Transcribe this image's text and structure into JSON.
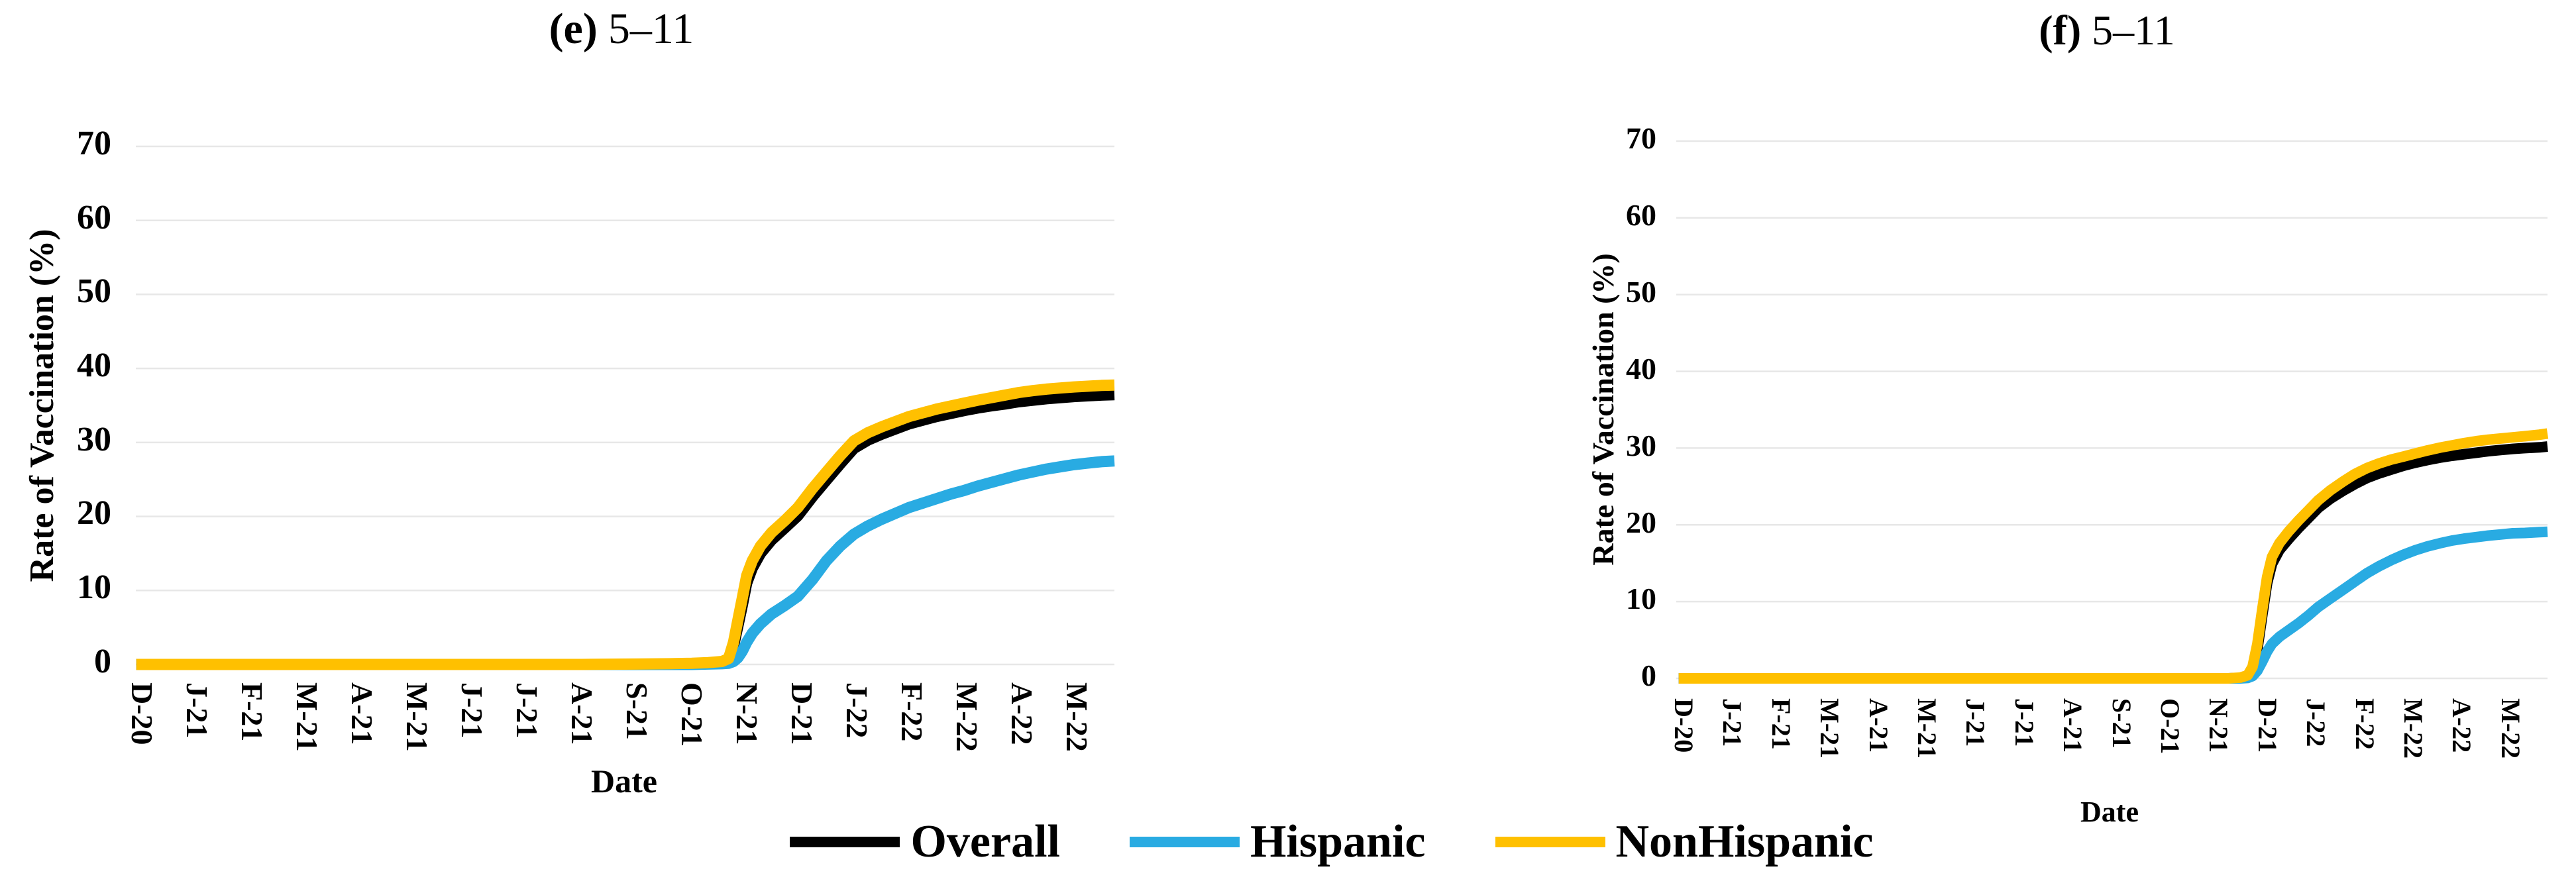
{
  "figure": {
    "background": "#FFFFFF",
    "grid_color": "#E7E7E7",
    "text_color": "#000000"
  },
  "legend": {
    "items": [
      {
        "label": "Overall",
        "color": "#000000"
      },
      {
        "label": "Hispanic",
        "color": "#29ABE2"
      },
      {
        "label": "NonHispanic",
        "color": "#FFC000"
      }
    ]
  },
  "chart_data": [
    {
      "id": "e",
      "type": "line",
      "title_prefix": "(e)",
      "title": "5–11",
      "xlabel": "Date",
      "ylabel": "Rate of Vaccination (%)",
      "ylim": [
        0,
        70
      ],
      "y_ticks": [
        70,
        60,
        50,
        40,
        30,
        20,
        10,
        0
      ],
      "grid": "horizontal",
      "legend_position": "bottom",
      "categories": [
        "D-20",
        "J-21",
        "F-21",
        "M-21",
        "A-21",
        "M-21",
        "J-21",
        "J-21",
        "A-21",
        "S-21",
        "O-21",
        "N-21",
        "D-21",
        "J-22",
        "F-22",
        "M-22",
        "A-22",
        "M-22"
      ],
      "series": [
        {
          "name": "Overall",
          "color": "#000000",
          "values": [
            0,
            0,
            0,
            0,
            0,
            0,
            0,
            0,
            0,
            0,
            0.1,
            11,
            20.1,
            29.2,
            32.5,
            34.3,
            35.5,
            36.2
          ],
          "detail": {
            "x": [
              -0.1,
              2,
              4,
              6,
              8,
              9,
              9.6,
              10,
              10.3,
              10.55,
              10.67,
              10.76,
              10.84,
              10.92,
              11.0,
              11.1,
              11.25,
              11.45,
              11.7,
              11.93,
              12.2,
              12.45,
              12.7,
              12.95,
              13.2,
              13.45,
              13.7,
              13.95,
              14.2,
              14.45,
              14.7,
              14.95,
              15.2,
              15.45,
              15.7,
              15.95,
              16.2,
              16.45,
              16.7,
              16.95,
              17.2,
              17.45,
              17.7
            ],
            "y": [
              0,
              0,
              0,
              0,
              0,
              0,
              0.05,
              0.1,
              0.15,
              0.3,
              0.6,
              2.5,
              5.2,
              8,
              11,
              13,
              15,
              16.8,
              18.5,
              20.1,
              22.7,
              24.9,
              27.1,
              29.2,
              30.3,
              31.1,
              31.8,
              32.5,
              33,
              33.5,
              33.9,
              34.3,
              34.65,
              34.95,
              35.2,
              35.5,
              35.7,
              35.9,
              36.05,
              36.2,
              36.3,
              36.4,
              36.45
            ]
          }
        },
        {
          "name": "Hispanic",
          "color": "#29ABE2",
          "values": [
            0,
            0,
            0,
            0,
            0,
            0,
            0,
            0,
            0,
            0,
            0,
            3,
            9.2,
            17.6,
            21.2,
            23.5,
            25.6,
            27.0
          ],
          "detail": {
            "x": [
              -0.1,
              2,
              4,
              6,
              8,
              9,
              9.6,
              10,
              10.3,
              10.55,
              10.67,
              10.76,
              10.84,
              10.92,
              11.0,
              11.1,
              11.25,
              11.45,
              11.7,
              11.93,
              12.2,
              12.45,
              12.7,
              12.95,
              13.2,
              13.45,
              13.7,
              13.95,
              14.2,
              14.45,
              14.7,
              14.95,
              15.2,
              15.45,
              15.7,
              15.95,
              16.2,
              16.45,
              16.7,
              16.95,
              17.2,
              17.45,
              17.7
            ],
            "y": [
              0,
              0,
              0,
              0,
              0,
              0,
              0,
              0,
              0.05,
              0.1,
              0.15,
              0.4,
              0.9,
              1.8,
              3,
              4.2,
              5.5,
              6.8,
              8,
              9.2,
              11.5,
              14,
              16,
              17.6,
              18.7,
              19.6,
              20.4,
              21.2,
              21.8,
              22.4,
              23,
              23.5,
              24.1,
              24.6,
              25.1,
              25.6,
              26,
              26.4,
              26.7,
              27,
              27.2,
              27.4,
              27.5
            ]
          }
        },
        {
          "name": "NonHispanic",
          "color": "#FFC000",
          "values": [
            0,
            0,
            0,
            0,
            0,
            0,
            0,
            0,
            0,
            0,
            0.2,
            12,
            21.2,
            30.2,
            33.5,
            35.2,
            36.8,
            37.4
          ],
          "detail": {
            "x": [
              -0.1,
              2,
              4,
              6,
              8,
              9,
              9.6,
              10,
              10.3,
              10.55,
              10.67,
              10.76,
              10.84,
              10.92,
              11.0,
              11.1,
              11.25,
              11.45,
              11.7,
              11.93,
              12.2,
              12.45,
              12.7,
              12.95,
              13.2,
              13.45,
              13.7,
              13.95,
              14.2,
              14.45,
              14.7,
              14.95,
              15.2,
              15.45,
              15.7,
              15.95,
              16.2,
              16.45,
              16.7,
              16.95,
              17.2,
              17.45,
              17.7
            ],
            "y": [
              0,
              0,
              0,
              0,
              0,
              0.05,
              0.1,
              0.15,
              0.25,
              0.4,
              0.8,
              3,
              6,
              9,
              12,
              14,
              16,
              17.8,
              19.5,
              21.2,
              23.8,
              26,
              28.2,
              30.2,
              31.3,
              32.1,
              32.8,
              33.5,
              34,
              34.5,
              34.9,
              35.3,
              35.7,
              36.05,
              36.4,
              36.75,
              37,
              37.2,
              37.35,
              37.5,
              37.6,
              37.7,
              37.75
            ]
          }
        }
      ]
    },
    {
      "id": "f",
      "type": "line",
      "title_prefix": "(f)",
      "title": "5–11",
      "xlabel": "Date",
      "ylabel": "Rate of Vaccination (%)",
      "ylim": [
        0,
        70
      ],
      "y_ticks": [
        70,
        60,
        50,
        40,
        30,
        20,
        10,
        0
      ],
      "grid": "horizontal",
      "legend_position": "bottom",
      "categories": [
        "D-20",
        "J-21",
        "F-21",
        "M-21",
        "A-21",
        "M-21",
        "J-21",
        "J-21",
        "A-21",
        "S-21",
        "O-21",
        "N-21",
        "D-21",
        "J-22",
        "F-22",
        "M-22",
        "A-22",
        "M-22"
      ],
      "series": [
        {
          "name": "Overall",
          "color": "#000000",
          "values": [
            0,
            0,
            0,
            0,
            0,
            0,
            0,
            0,
            0,
            0,
            0,
            0,
            13,
            22.4,
            26.1,
            28.1,
            29.2,
            29.9
          ],
          "detail": {
            "x": [
              -0.1,
              3,
              6,
              9,
              10.5,
              11.2,
              11.45,
              11.6,
              11.7,
              11.8,
              11.9,
              12,
              12.1,
              12.25,
              12.45,
              12.65,
              12.85,
              13.05,
              13.3,
              13.55,
              13.8,
              14.05,
              14.3,
              14.55,
              14.8,
              15.05,
              15.3,
              15.55,
              15.8,
              16.05,
              16.3,
              16.55,
              16.8,
              17.05,
              17.3,
              17.6,
              17.77
            ],
            "y": [
              0,
              0,
              0,
              0,
              0,
              0,
              0.05,
              0.3,
              1.2,
              3.8,
              8.2,
              12.4,
              14.9,
              16.7,
              18.2,
              19.6,
              20.9,
              22.2,
              23.4,
              24.4,
              25.3,
              26.1,
              26.7,
              27.2,
              27.7,
              28.1,
              28.45,
              28.75,
              29,
              29.2,
              29.4,
              29.6,
              29.75,
              29.9,
              30,
              30.1,
              30.2
            ]
          }
        },
        {
          "name": "Hispanic",
          "color": "#29ABE2",
          "values": [
            0,
            0,
            0,
            0,
            0,
            0,
            0,
            0,
            0,
            0,
            0,
            0,
            3.5,
            9,
            13.8,
            16.8,
            18.3,
            18.9
          ],
          "detail": {
            "x": [
              -0.1,
              3,
              6,
              9,
              10.5,
              11.2,
              11.45,
              11.6,
              11.7,
              11.8,
              11.9,
              12,
              12.1,
              12.25,
              12.45,
              12.65,
              12.85,
              13.05,
              13.3,
              13.55,
              13.8,
              14.05,
              14.3,
              14.55,
              14.8,
              15.05,
              15.3,
              15.55,
              15.8,
              16.05,
              16.3,
              16.55,
              16.8,
              17.05,
              17.3,
              17.6,
              17.77
            ],
            "y": [
              0,
              0,
              0,
              0,
              0,
              0,
              0,
              0.05,
              0.3,
              1,
              2.2,
              3.5,
              4.5,
              5.4,
              6.3,
              7.2,
              8.2,
              9.3,
              10.4,
              11.5,
              12.6,
              13.7,
              14.6,
              15.4,
              16.1,
              16.7,
              17.2,
              17.6,
              17.95,
              18.2,
              18.4,
              18.6,
              18.75,
              18.9,
              18.95,
              19.05,
              19.1
            ]
          }
        },
        {
          "name": "NonHispanic",
          "color": "#FFC000",
          "values": [
            0,
            0,
            0,
            0,
            0,
            0,
            0,
            0,
            0,
            0,
            0,
            0,
            13.8,
            23.2,
            27.4,
            29.3,
            30.6,
            31.4
          ],
          "detail": {
            "x": [
              -0.1,
              3,
              6,
              9,
              10.5,
              11.2,
              11.45,
              11.6,
              11.7,
              11.8,
              11.9,
              12,
              12.1,
              12.25,
              12.45,
              12.65,
              12.85,
              13.05,
              13.3,
              13.55,
              13.8,
              14.05,
              14.3,
              14.55,
              14.8,
              15.05,
              15.3,
              15.55,
              15.8,
              16.05,
              16.3,
              16.55,
              16.8,
              17.05,
              17.3,
              17.6,
              17.77
            ],
            "y": [
              0,
              0,
              0,
              0,
              0,
              0,
              0.1,
              0.4,
              1.5,
              4.5,
              9,
              13.2,
              15.8,
              17.6,
              19.2,
              20.6,
              21.9,
              23.2,
              24.5,
              25.6,
              26.6,
              27.4,
              28,
              28.5,
              28.9,
              29.3,
              29.7,
              30.05,
              30.35,
              30.65,
              30.9,
              31.1,
              31.25,
              31.4,
              31.55,
              31.75,
              31.9
            ]
          }
        }
      ]
    }
  ]
}
